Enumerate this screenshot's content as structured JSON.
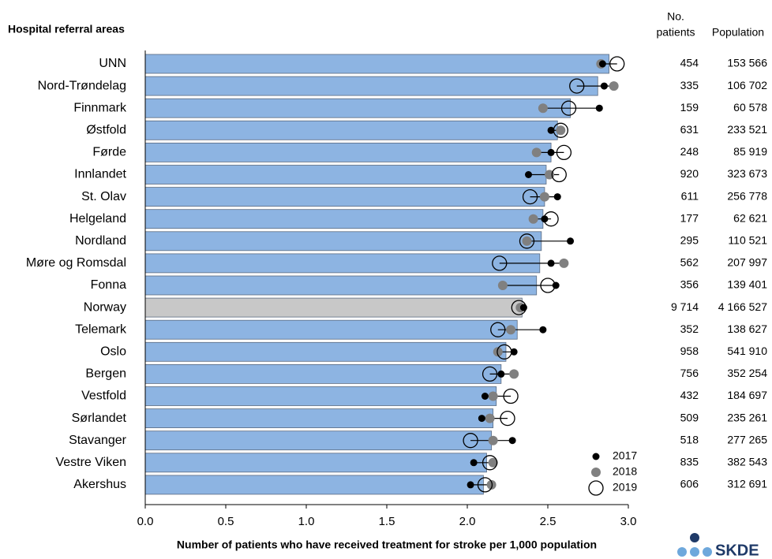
{
  "chart_data": {
    "type": "dotbar",
    "title": "Hospital referral areas",
    "x_label": "Number of patients who have received treatment for stroke per 1,000 population",
    "categories": [
      "UNN",
      "Nord-Trøndelag",
      "Finnmark",
      "Østfold",
      "Førde",
      "Innlandet",
      "St. Olav",
      "Helgeland",
      "Nordland",
      "Møre og Romsdal",
      "Fonna",
      "Norway",
      "Telemark",
      "Oslo",
      "Bergen",
      "Vestfold",
      "Sørlandet",
      "Stavanger",
      "Vestre Viken",
      "Akershus"
    ],
    "values": [
      2.88,
      2.81,
      2.64,
      2.56,
      2.52,
      2.49,
      2.48,
      2.47,
      2.46,
      2.45,
      2.43,
      2.34,
      2.31,
      2.24,
      2.21,
      2.18,
      2.16,
      2.15,
      2.12,
      2.1
    ],
    "bar_colors": [
      "#8db4e2",
      "#8db4e2",
      "#8db4e2",
      "#8db4e2",
      "#8db4e2",
      "#8db4e2",
      "#8db4e2",
      "#8db4e2",
      "#8db4e2",
      "#8db4e2",
      "#8db4e2",
      "#c8c8c8",
      "#8db4e2",
      "#8db4e2",
      "#8db4e2",
      "#8db4e2",
      "#8db4e2",
      "#8db4e2",
      "#8db4e2",
      "#8db4e2"
    ],
    "series": [
      {
        "name": "2017",
        "color": "#000000",
        "values": [
          2.84,
          2.85,
          2.82,
          2.52,
          2.52,
          2.38,
          2.56,
          2.48,
          2.64,
          2.52,
          2.55,
          2.35,
          2.47,
          2.29,
          2.21,
          2.11,
          2.09,
          2.28,
          2.04,
          2.02
        ]
      },
      {
        "name": "2018",
        "color": "#808080",
        "values": [
          2.83,
          2.91,
          2.47,
          2.58,
          2.43,
          2.51,
          2.48,
          2.41,
          2.37,
          2.6,
          2.22,
          2.33,
          2.27,
          2.19,
          2.29,
          2.16,
          2.14,
          2.16,
          2.16,
          2.15
        ]
      },
      {
        "name": "2019",
        "color": "#ffffff",
        "values": [
          2.93,
          2.68,
          2.63,
          2.58,
          2.6,
          2.57,
          2.39,
          2.52,
          2.37,
          2.2,
          2.5,
          2.32,
          2.19,
          2.23,
          2.14,
          2.27,
          2.25,
          2.02,
          2.14,
          2.11
        ]
      }
    ],
    "xlim": [
      0,
      3
    ],
    "xticks": [
      {
        "value": 0,
        "label": "0.0"
      },
      {
        "value": 0.5,
        "label": "0.5"
      },
      {
        "value": 1,
        "label": "1.0"
      },
      {
        "value": 1.5,
        "label": "1.5"
      },
      {
        "value": 2,
        "label": "2.0"
      },
      {
        "value": 2.5,
        "label": "2.5"
      },
      {
        "value": 3,
        "label": "3.0"
      }
    ],
    "legend": "bottom-right"
  },
  "table": {
    "patients_header": [
      "No.",
      "patients"
    ],
    "population_header": "Population",
    "rows": [
      [
        "454",
        "153 566"
      ],
      [
        "335",
        "106 702"
      ],
      [
        "159",
        "60 578"
      ],
      [
        "631",
        "233 521"
      ],
      [
        "248",
        "85 919"
      ],
      [
        "920",
        "323 673"
      ],
      [
        "611",
        "256 778"
      ],
      [
        "177",
        "62 621"
      ],
      [
        "295",
        "110 521"
      ],
      [
        "562",
        "207 997"
      ],
      [
        "356",
        "139 401"
      ],
      [
        "9 714",
        "4 166 527"
      ],
      [
        "352",
        "138 627"
      ],
      [
        "958",
        "541 910"
      ],
      [
        "756",
        "352 254"
      ],
      [
        "432",
        "184 697"
      ],
      [
        "509",
        "235 261"
      ],
      [
        "518",
        "277 265"
      ],
      [
        "835",
        "382 543"
      ],
      [
        "606",
        "312 691"
      ]
    ]
  },
  "logo": "SKDE"
}
